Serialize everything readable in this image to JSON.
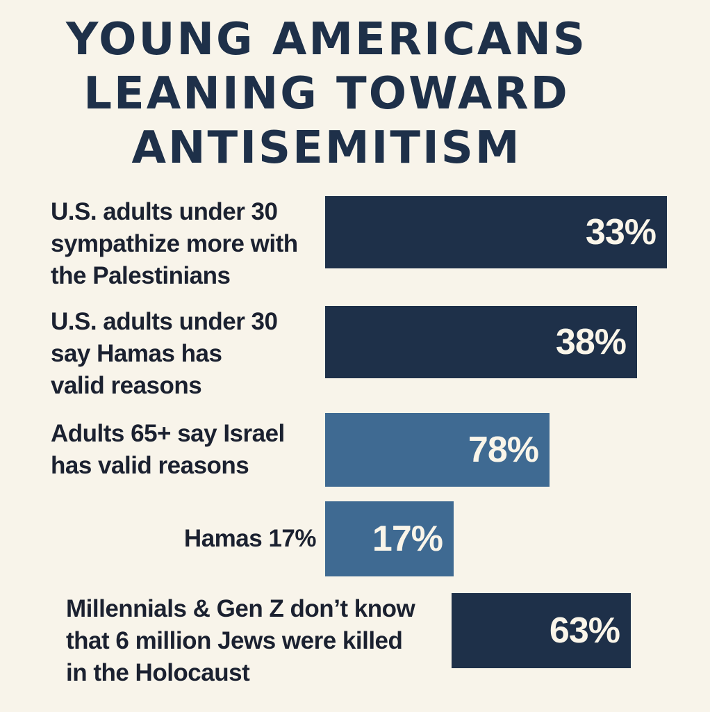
{
  "title_lines": [
    "YOUNG AMERICANS",
    "LEANING TOWARD",
    "ANTISEMITISM"
  ],
  "colors": {
    "dark": "#1e3049",
    "light": "#3f6a92",
    "background": "#f8f4ea"
  },
  "chart_data": {
    "type": "bar",
    "orientation": "horizontal",
    "title": "YOUNG AMERICANS LEANING TOWARD ANTISEMITISM",
    "categories": [
      "U.S. adults under 30 sympathize more with the Palestinians",
      "U.S. adults under 30 say Hamas has valid reasons",
      "Adults 65+ say Israel has valid reasons",
      "Hamas 17%",
      "Millennials & Gen Z don't know that 6 million Jews were killed in the Holocaust"
    ],
    "values": [
      33,
      38,
      78,
      17,
      63
    ],
    "value_labels": [
      "33%",
      "38%",
      "78%",
      "17%",
      "63%"
    ],
    "label_lines": [
      [
        "U.S. adults under 30",
        "sympathize more with",
        "the Palestinians"
      ],
      [
        "U.S. adults under 30",
        "say Hamas has",
        "valid reasons"
      ],
      [
        "Adults 65+ say Israel",
        "has valid reasons"
      ],
      [
        "Hamas 17%"
      ],
      [
        "Millennials & Gen Z don’t know",
        "that 6 million Jews were killed",
        "in the Holocaust"
      ]
    ],
    "bar_colors": [
      "#1e3049",
      "#1e3049",
      "#3f6a92",
      "#3f6a92",
      "#1e3049"
    ],
    "xlabel": "",
    "ylabel": "",
    "grid": false
  }
}
